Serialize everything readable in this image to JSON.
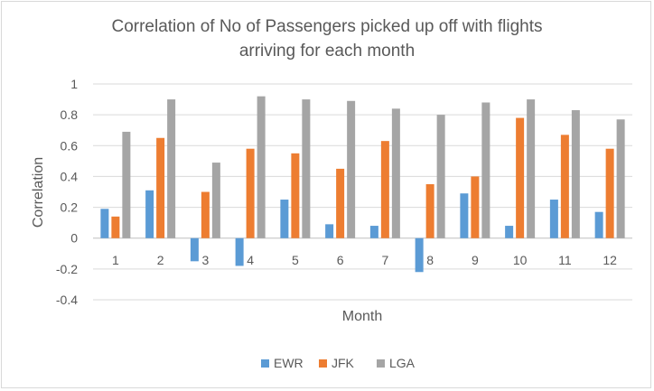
{
  "chart_data": {
    "type": "bar",
    "title": "Correlation of No of Passengers picked up off with flights arriving for each month",
    "title_lines": [
      "Correlation of No of Passengers picked up off with flights",
      "arriving for each month"
    ],
    "xlabel": "Month",
    "ylabel": "Correlation",
    "ylim": [
      -0.4,
      1
    ],
    "yticks": [
      -0.4,
      -0.2,
      0,
      0.2,
      0.4,
      0.6,
      0.8,
      1
    ],
    "ytick_labels": [
      "-0.4",
      "-0.2",
      "0",
      "0.2",
      "0.4",
      "0.6",
      "0.8",
      "1"
    ],
    "categories": [
      "1",
      "2",
      "3",
      "4",
      "5",
      "6",
      "7",
      "8",
      "9",
      "10",
      "11",
      "12"
    ],
    "series": [
      {
        "name": "EWR",
        "color": "#5b9bd5",
        "values": [
          0.19,
          0.31,
          -0.15,
          -0.18,
          0.25,
          0.09,
          0.08,
          -0.22,
          0.29,
          0.08,
          0.25,
          0.17
        ]
      },
      {
        "name": "JFK",
        "color": "#ed7d31",
        "values": [
          0.14,
          0.65,
          0.3,
          0.58,
          0.55,
          0.45,
          0.63,
          0.35,
          0.4,
          0.78,
          0.67,
          0.58
        ]
      },
      {
        "name": "LGA",
        "color": "#a5a5a5",
        "values": [
          0.69,
          0.9,
          0.49,
          0.92,
          0.9,
          0.89,
          0.84,
          0.8,
          0.88,
          0.9,
          0.83,
          0.77
        ]
      }
    ],
    "grid": true,
    "legend_position": "bottom"
  }
}
